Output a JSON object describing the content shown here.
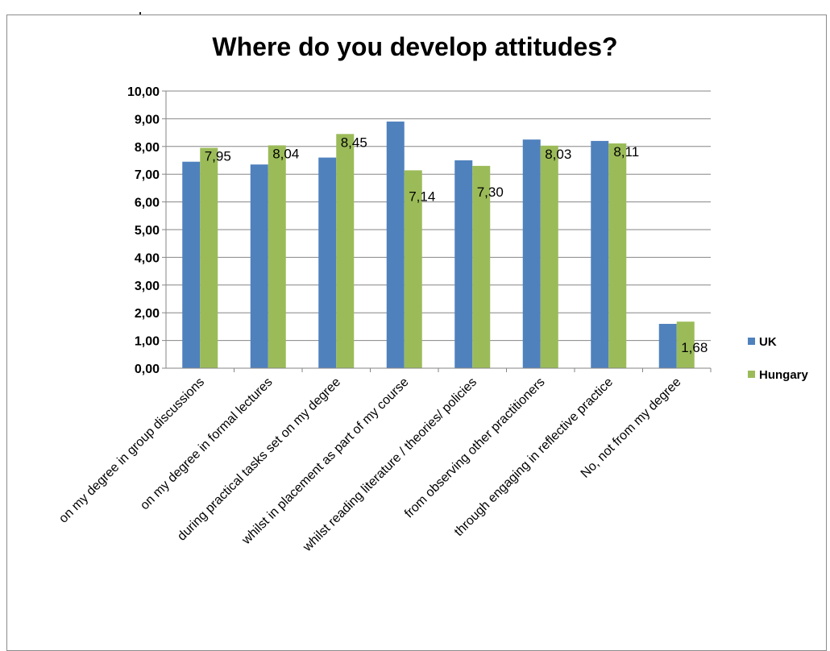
{
  "chart_data": {
    "type": "bar",
    "title": "Where do you develop attitudes?",
    "xlabel": "",
    "ylabel": "",
    "ylim": [
      0,
      10
    ],
    "ytick_step": 1,
    "ytick_labels": [
      "0,00",
      "1,00",
      "2,00",
      "3,00",
      "4,00",
      "5,00",
      "6,00",
      "7,00",
      "8,00",
      "9,00",
      "10,00"
    ],
    "grid": true,
    "legend_position": "right",
    "categories": [
      "on my degree in group discussions",
      "on my degree in formal lectures",
      "during practical tasks set on my degree",
      "whilst in placement as part of my course",
      "whilst reading literature / theories/ policies",
      "from observing other practitioners",
      "through engaging in reflective practice",
      "No, not from my degree"
    ],
    "series": [
      {
        "name": "UK",
        "color": "#4F81BD",
        "values": [
          7.45,
          7.35,
          7.6,
          8.9,
          7.5,
          8.25,
          8.2,
          1.6
        ],
        "data_labels": [
          "",
          "",
          "",
          "",
          "",
          "",
          "",
          ""
        ]
      },
      {
        "name": "Hungary",
        "color": "#9BBB59",
        "values": [
          7.95,
          8.04,
          8.45,
          7.14,
          7.3,
          8.03,
          8.11,
          1.68
        ],
        "data_labels": [
          "7,95",
          "8,04",
          "8,45",
          "7,14",
          "7,30",
          "8,03",
          "8,11",
          "1,68"
        ]
      }
    ]
  }
}
